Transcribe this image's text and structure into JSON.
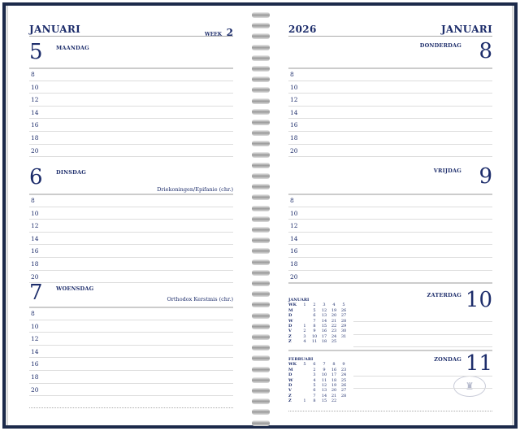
{
  "left": {
    "month": "JANUARI",
    "week_label": "WEEK",
    "week_number": "2",
    "days": [
      {
        "number": "5",
        "name": "MAANDAG",
        "holiday": ""
      },
      {
        "number": "6",
        "name": "DINSDAG",
        "holiday": "Driekoningen/Epifanie (chr.)"
      },
      {
        "number": "7",
        "name": "WOENSDAG",
        "holiday": "Orthodox Kerstmis (chr.)"
      }
    ]
  },
  "right": {
    "year": "2026",
    "month": "JANUARI",
    "days": [
      {
        "number": "8",
        "name": "DONDERDAG"
      },
      {
        "number": "9",
        "name": "VRIJDAG"
      },
      {
        "number": "10",
        "name": "ZATERDAG"
      },
      {
        "number": "11",
        "name": "ZONDAG"
      }
    ]
  },
  "hours": [
    "8",
    "10",
    "12",
    "14",
    "16",
    "18",
    "20"
  ],
  "mini_calendars": [
    {
      "title": "JANUARI",
      "rows": [
        [
          "WK",
          "1",
          "2",
          "3",
          "4",
          "5"
        ],
        [
          "M",
          "",
          "5",
          "12",
          "19",
          "26"
        ],
        [
          "D",
          "",
          "6",
          "13",
          "20",
          "27"
        ],
        [
          "W",
          "",
          "7",
          "14",
          "21",
          "28"
        ],
        [
          "D",
          "1",
          "8",
          "15",
          "22",
          "29"
        ],
        [
          "V",
          "2",
          "9",
          "16",
          "23",
          "30"
        ],
        [
          "Z",
          "3",
          "10",
          "17",
          "24",
          "31"
        ],
        [
          "Z",
          "4",
          "11",
          "18",
          "25",
          ""
        ]
      ]
    },
    {
      "title": "FEBRUARI",
      "rows": [
        [
          "WK",
          "5",
          "6",
          "7",
          "8",
          "9"
        ],
        [
          "M",
          "",
          "2",
          "9",
          "16",
          "23"
        ],
        [
          "D",
          "",
          "3",
          "10",
          "17",
          "24"
        ],
        [
          "W",
          "",
          "4",
          "11",
          "18",
          "25"
        ],
        [
          "D",
          "",
          "5",
          "12",
          "19",
          "26"
        ],
        [
          "V",
          "",
          "6",
          "13",
          "20",
          "27"
        ],
        [
          "Z",
          "",
          "7",
          "14",
          "21",
          "28"
        ],
        [
          "Z",
          "1",
          "8",
          "15",
          "22",
          ""
        ]
      ]
    }
  ],
  "colors": {
    "ink": "#1d2d6b",
    "frame": "#1c2a4a"
  }
}
